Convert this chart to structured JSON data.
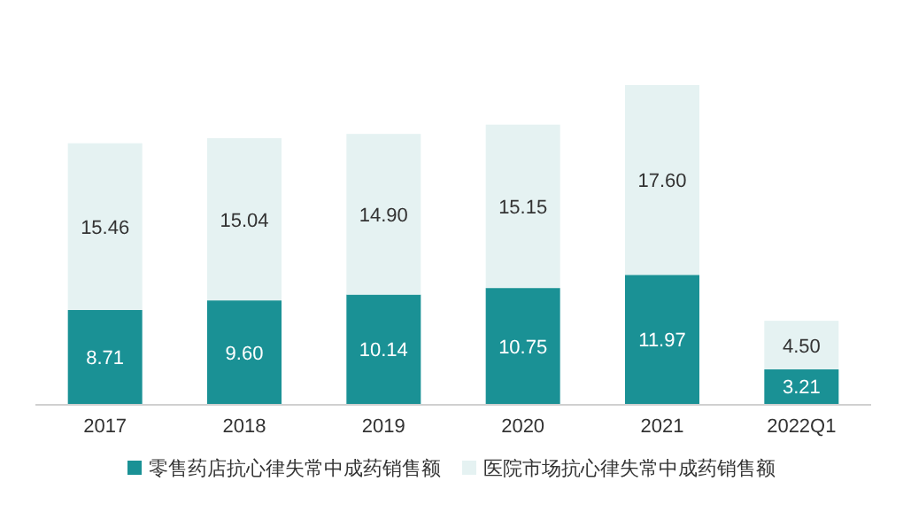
{
  "chart_data": {
    "type": "bar",
    "stacked": true,
    "legend": "bottom",
    "categories": [
      "2017",
      "2018",
      "2019",
      "2020",
      "2021",
      "2022Q1"
    ],
    "series": [
      {
        "name": "零售药店抗心律失常中成药销售额",
        "color": "#1a9195",
        "values": [
          8.71,
          9.6,
          10.14,
          10.75,
          11.97,
          3.21
        ],
        "value_labels": [
          "8.71",
          "9.60",
          "10.14",
          "10.75",
          "11.97",
          "3.21"
        ]
      },
      {
        "name": "医院市场抗心律失常中成药销售额",
        "color": "#e5f2f2",
        "values": [
          15.46,
          15.04,
          14.9,
          15.15,
          17.6,
          4.5
        ],
        "value_labels": [
          "15.46",
          "15.04",
          "14.90",
          "15.15",
          "17.60",
          "4.50"
        ]
      }
    ]
  }
}
